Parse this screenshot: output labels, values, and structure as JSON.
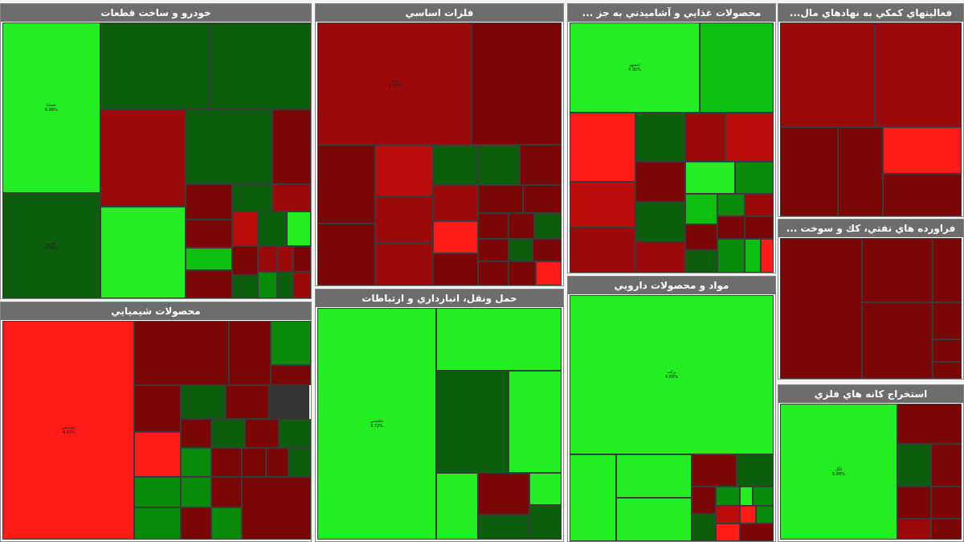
{
  "colors": {
    "strong_up": "#22ee22",
    "up": "#0fbf0f",
    "mild_up": "#0a8a0a",
    "flat_up": "#0c5e0c",
    "flat_down": "#7a0606",
    "down": "#9a0a0a",
    "mild_down": "#bb0c0c",
    "strong_down": "#ff1a1a",
    "header_bg": "#6d6d6d",
    "header_text": "#ffffff"
  },
  "chart_data": {
    "type": "treemap",
    "title": "",
    "sectors": [
      {
        "name": "خودرو و ساخت قطعات",
        "tiles": [
          {
            "label": "خساپا",
            "change": "6.98%",
            "color": "strong_up"
          },
          {
            "label": "",
            "change": "",
            "color": "flat_up"
          },
          {
            "label": "",
            "change": "",
            "color": "flat_up"
          },
          {
            "label": "خودرو",
            "change": "0.55%",
            "color": "flat_up"
          },
          {
            "label": "",
            "change": "",
            "color": "down"
          },
          {
            "label": "",
            "change": "",
            "color": "flat_up"
          },
          {
            "label": "",
            "change": "",
            "color": "flat_down"
          },
          {
            "label": "",
            "change": "",
            "color": "strong_up"
          },
          {
            "label": "",
            "change": "",
            "color": "flat_down"
          },
          {
            "label": "",
            "change": "",
            "color": "flat_up"
          },
          {
            "label": "",
            "change": "",
            "color": "down"
          },
          {
            "label": "",
            "change": "",
            "color": "flat_down"
          },
          {
            "label": "",
            "change": "",
            "color": "mild_down"
          },
          {
            "label": "",
            "change": "",
            "color": "flat_up"
          },
          {
            "label": "",
            "change": "",
            "color": "strong_up"
          },
          {
            "label": "",
            "change": "",
            "color": "up"
          },
          {
            "label": "",
            "change": "",
            "color": "flat_down"
          },
          {
            "label": "",
            "change": "",
            "color": "flat_down"
          },
          {
            "label": "",
            "change": "",
            "color": "down"
          },
          {
            "label": "",
            "change": "",
            "color": "down"
          },
          {
            "label": "",
            "change": "",
            "color": "flat_down"
          },
          {
            "label": "",
            "change": "",
            "color": "flat_up"
          },
          {
            "label": "",
            "change": "",
            "color": "mild_up"
          },
          {
            "label": "",
            "change": "",
            "color": "flat_up"
          },
          {
            "label": "",
            "change": "",
            "color": "down"
          }
        ]
      },
      {
        "name": "فلزات اساسي",
        "tiles": [
          {
            "label": "فولاد",
            "change": "-1.55%",
            "color": "down"
          },
          {
            "label": "",
            "change": "",
            "color": "flat_down"
          },
          {
            "label": "",
            "change": "",
            "color": "flat_down"
          },
          {
            "label": "",
            "change": "",
            "color": "flat_down"
          },
          {
            "label": "",
            "change": "",
            "color": "flat_up"
          },
          {
            "label": "",
            "change": "",
            "color": "flat_up"
          },
          {
            "label": "",
            "change": "",
            "color": "flat_down"
          },
          {
            "label": "",
            "change": "",
            "color": "mild_down"
          },
          {
            "label": "",
            "change": "",
            "color": "down"
          },
          {
            "label": "",
            "change": "",
            "color": "down"
          },
          {
            "label": "",
            "change": "",
            "color": "down"
          },
          {
            "label": "",
            "change": "",
            "color": "flat_down"
          },
          {
            "label": "",
            "change": "",
            "color": "flat_down"
          },
          {
            "label": "",
            "change": "",
            "color": "strong_down"
          },
          {
            "label": "",
            "change": "",
            "color": "flat_down"
          },
          {
            "label": "",
            "change": "",
            "color": "flat_down"
          },
          {
            "label": "",
            "change": "",
            "color": "flat_up"
          },
          {
            "label": "",
            "change": "",
            "color": "flat_down"
          },
          {
            "label": "",
            "change": "",
            "color": "flat_up"
          },
          {
            "label": "",
            "change": "",
            "color": "flat_down"
          },
          {
            "label": "",
            "change": "",
            "color": "flat_down"
          },
          {
            "label": "",
            "change": "",
            "color": "flat_down"
          },
          {
            "label": "",
            "change": "",
            "color": "flat_down"
          },
          {
            "label": "",
            "change": "",
            "color": "strong_down"
          }
        ]
      },
      {
        "name": "محصولات غذايي و آشاميدني به جز ...",
        "tiles": [
          {
            "label": "غبشهر",
            "change": "4.30%",
            "color": "strong_up"
          },
          {
            "label": "",
            "change": "",
            "color": "up"
          },
          {
            "label": "",
            "change": "",
            "color": "strong_down"
          },
          {
            "label": "",
            "change": "",
            "color": "flat_up"
          },
          {
            "label": "",
            "change": "",
            "color": "down"
          },
          {
            "label": "",
            "change": "",
            "color": "mild_down"
          },
          {
            "label": "",
            "change": "",
            "color": "mild_down"
          },
          {
            "label": "",
            "change": "",
            "color": "flat_down"
          },
          {
            "label": "",
            "change": "",
            "color": "strong_up"
          },
          {
            "label": "",
            "change": "",
            "color": "mild_up"
          },
          {
            "label": "",
            "change": "",
            "color": "flat_up"
          },
          {
            "label": "",
            "change": "",
            "color": "up"
          },
          {
            "label": "",
            "change": "",
            "color": "mild_up"
          },
          {
            "label": "",
            "change": "",
            "color": "down"
          },
          {
            "label": "",
            "change": "",
            "color": "down"
          },
          {
            "label": "",
            "change": "",
            "color": "down"
          },
          {
            "label": "",
            "change": "",
            "color": "flat_down"
          },
          {
            "label": "",
            "change": "",
            "color": "flat_down"
          },
          {
            "label": "",
            "change": "",
            "color": "flat_down"
          },
          {
            "label": "",
            "change": "",
            "color": "flat_up"
          },
          {
            "label": "",
            "change": "",
            "color": "mild_up"
          },
          {
            "label": "",
            "change": "",
            "color": "up"
          },
          {
            "label": "",
            "change": "",
            "color": "strong_down"
          }
        ]
      },
      {
        "name": "فعاليتهاي كمكي به نهادهاي مال...",
        "tiles": [
          {
            "label": "",
            "change": "",
            "color": "down"
          },
          {
            "label": "",
            "change": "",
            "color": "down"
          },
          {
            "label": "",
            "change": "",
            "color": "flat_down"
          },
          {
            "label": "",
            "change": "",
            "color": "flat_down"
          },
          {
            "label": "",
            "change": "",
            "color": "strong_down"
          },
          {
            "label": "",
            "change": "",
            "color": "flat_down"
          }
        ]
      },
      {
        "name": "فراورده هاي نفتي، كك و سوخت ...",
        "tiles": [
          {
            "label": "",
            "change": "",
            "color": "flat_down"
          },
          {
            "label": "",
            "change": "",
            "color": "flat_down"
          },
          {
            "label": "",
            "change": "",
            "color": "flat_down"
          },
          {
            "label": "",
            "change": "",
            "color": "flat_down"
          },
          {
            "label": "",
            "change": "",
            "color": "flat_down"
          },
          {
            "label": "",
            "change": "",
            "color": "flat_down"
          },
          {
            "label": "",
            "change": "",
            "color": "flat_down"
          }
        ]
      },
      {
        "name": "محصولات شيميايي",
        "tiles": [
          {
            "label": "شپديس",
            "change": "-4.33%",
            "color": "strong_down"
          },
          {
            "label": "",
            "change": "",
            "color": "flat_down"
          },
          {
            "label": "",
            "change": "",
            "color": "flat_down"
          },
          {
            "label": "",
            "change": "",
            "color": "mild_up"
          },
          {
            "label": "",
            "change": "",
            "color": "flat_down"
          },
          {
            "label": "",
            "change": "",
            "color": "flat_down"
          },
          {
            "label": "",
            "change": "",
            "color": "flat_up"
          },
          {
            "label": "",
            "change": "",
            "color": "flat_down"
          },
          {
            "label": "",
            "change": "",
            "color": "strong_down"
          },
          {
            "label": "",
            "change": "",
            "color": "flat_down"
          },
          {
            "label": "",
            "change": "",
            "color": "flat_up"
          },
          {
            "label": "",
            "change": "",
            "color": "flat_down"
          },
          {
            "label": "",
            "change": "",
            "color": "flat_up"
          },
          {
            "label": "",
            "change": "",
            "color": "mild_up"
          },
          {
            "label": "",
            "change": "",
            "color": "flat_down"
          },
          {
            "label": "",
            "change": "",
            "color": "flat_down"
          },
          {
            "label": "",
            "change": "",
            "color": "flat_down"
          },
          {
            "label": "",
            "change": "",
            "color": "flat_up"
          },
          {
            "label": "",
            "change": "",
            "color": "mild_up"
          },
          {
            "label": "",
            "change": "",
            "color": "mild_up"
          },
          {
            "label": "",
            "change": "",
            "color": "mild_up"
          },
          {
            "label": "",
            "change": "",
            "color": "flat_down"
          },
          {
            "label": "",
            "change": "",
            "color": "flat_down"
          },
          {
            "label": "",
            "change": "",
            "color": "mild_up"
          },
          {
            "label": "",
            "change": "",
            "color": "flat_down"
          }
        ]
      },
      {
        "name": "حمل ونقل، انبارداري و ارتباطات",
        "tiles": [
          {
            "label": "حكشتي",
            "change": "3.72%",
            "color": "strong_up"
          },
          {
            "label": "",
            "change": "",
            "color": "strong_up"
          },
          {
            "label": "",
            "change": "",
            "color": "flat_up"
          },
          {
            "label": "",
            "change": "",
            "color": "strong_up"
          },
          {
            "label": "",
            "change": "",
            "color": "strong_up"
          },
          {
            "label": "",
            "change": "",
            "color": "flat_down"
          },
          {
            "label": "",
            "change": "",
            "color": "flat_up"
          },
          {
            "label": "",
            "change": "",
            "color": "strong_up"
          },
          {
            "label": "",
            "change": "",
            "color": "flat_up"
          }
        ]
      },
      {
        "name": "مواد و محصولات دارويي",
        "tiles": [
          {
            "label": "بركت",
            "change": "4.89%",
            "color": "strong_up"
          },
          {
            "label": "",
            "change": "",
            "color": "strong_up"
          },
          {
            "label": "",
            "change": "",
            "color": "strong_up"
          },
          {
            "label": "",
            "change": "",
            "color": "strong_up"
          },
          {
            "label": "",
            "change": "",
            "color": "flat_down"
          },
          {
            "label": "",
            "change": "",
            "color": "flat_up"
          },
          {
            "label": "",
            "change": "",
            "color": "flat_down"
          },
          {
            "label": "",
            "change": "",
            "color": "mild_up"
          },
          {
            "label": "",
            "change": "",
            "color": "strong_up"
          },
          {
            "label": "",
            "change": "",
            "color": "mild_up"
          },
          {
            "label": "",
            "change": "",
            "color": "mild_down"
          },
          {
            "label": "",
            "change": "",
            "color": "strong_down"
          },
          {
            "label": "",
            "change": "",
            "color": "mild_up"
          },
          {
            "label": "",
            "change": "",
            "color": "flat_up"
          },
          {
            "label": "",
            "change": "",
            "color": "strong_down"
          },
          {
            "label": "",
            "change": "",
            "color": "flat_down"
          }
        ]
      },
      {
        "name": "استخراج كانه هاي فلزي",
        "tiles": [
          {
            "label": "كگل",
            "change": "5.88%",
            "color": "strong_up"
          },
          {
            "label": "",
            "change": "",
            "color": "flat_down"
          },
          {
            "label": "",
            "change": "",
            "color": "flat_up"
          },
          {
            "label": "",
            "change": "",
            "color": "flat_down"
          },
          {
            "label": "",
            "change": "",
            "color": "flat_down"
          },
          {
            "label": "",
            "change": "",
            "color": "flat_down"
          },
          {
            "label": "",
            "change": "",
            "color": "down"
          },
          {
            "label": "",
            "change": "",
            "color": "flat_down"
          },
          {
            "label": "",
            "change": "",
            "color": "flat_down"
          },
          {
            "label": "",
            "change": "",
            "color": "flat_up"
          },
          {
            "label": "",
            "change": "",
            "color": "flat_down"
          }
        ]
      }
    ]
  }
}
